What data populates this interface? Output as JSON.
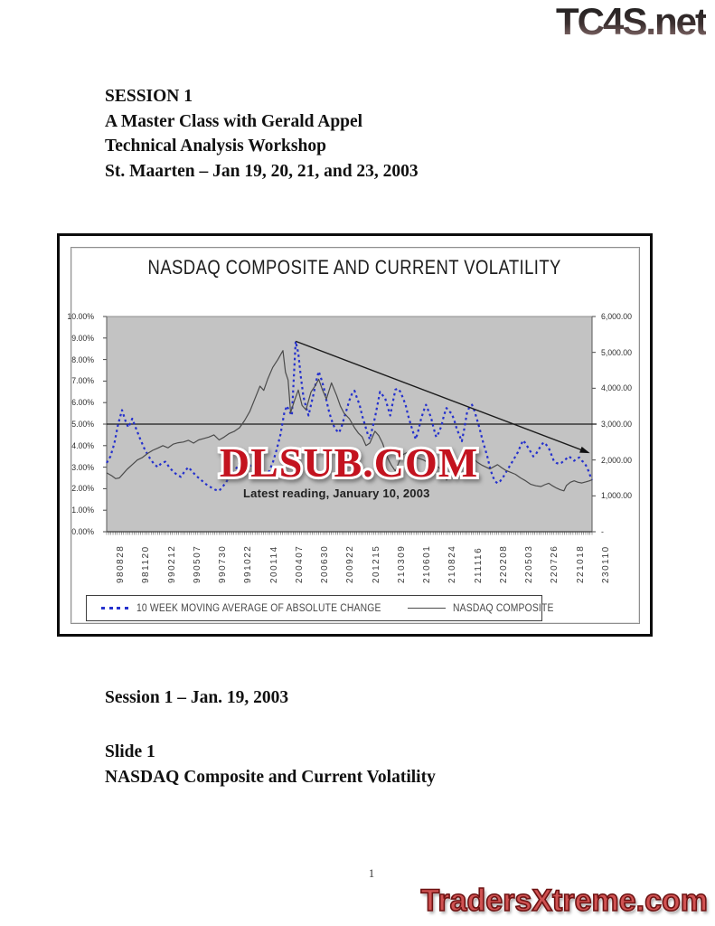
{
  "page": {
    "top_logo": "TC4S.net",
    "page_number": "1",
    "bottom_logo": "TradersXtreme.com"
  },
  "header": {
    "lines": [
      "SESSION 1",
      "A Master Class with Gerald Appel",
      "Technical Analysis Workshop",
      "St. Maarten – Jan 19, 20, 21, and 23, 2003"
    ]
  },
  "footer_block": {
    "session_line": "Session 1 – Jan. 19, 2003",
    "slide_label": "Slide 1",
    "slide_title": "NASDAQ Composite and Current Volatility"
  },
  "chart": {
    "watermark": "DLSUB.COM",
    "watermark_color": "#c3131f",
    "annotation": "Latest reading, January 10, 2003"
  },
  "chart_data": {
    "type": "line",
    "title": "NASDAQ COMPOSITE AND CURRENT VOLATILITY",
    "plot_bg": "#c3c3c3",
    "grid": "off",
    "legend_position": "bottom-box",
    "x_labels": [
      "980828",
      "981120",
      "990212",
      "990507",
      "990730",
      "991022",
      "200114",
      "200407",
      "200630",
      "200922",
      "201215",
      "210309",
      "210601",
      "210824",
      "211116",
      "220208",
      "220503",
      "220726",
      "221018",
      "230110"
    ],
    "left_axis": {
      "min": 0,
      "max": 10,
      "unit": "%",
      "tick_labels": [
        "10.00%",
        "9.00%",
        "8.00%",
        "7.00%",
        "6.00%",
        "5.00%",
        "4.00%",
        "3.00%",
        "2.00%",
        "1.00%",
        "0.00%"
      ]
    },
    "right_axis": {
      "min": 0,
      "max": 6000,
      "tick_labels": [
        "6,000.00",
        "5,000.00",
        "4,000.00",
        "3,000.00",
        "2,000.00",
        "1,000.00",
        "-"
      ]
    },
    "reference_line_left_pct": 5.0,
    "trendline": {
      "x1": 7.4,
      "y1_pct": 8.85,
      "x2": 18.85,
      "y2_pct": 3.68,
      "arrow": true,
      "color": "#1c1c1c"
    },
    "weekly_minor_ticks": 229,
    "series": [
      {
        "name": "10 WEEK MOVING AVERAGE OF ABSOLUTE CHANGE",
        "axis": "left",
        "style": "dotted",
        "color": "#2531cd",
        "points": [
          [
            0,
            3.2
          ],
          [
            0.15,
            3.5
          ],
          [
            0.3,
            4.1
          ],
          [
            0.45,
            5.0
          ],
          [
            0.6,
            5.65
          ],
          [
            0.75,
            5.1
          ],
          [
            0.85,
            4.85
          ],
          [
            1.0,
            5.25
          ],
          [
            1.15,
            4.8
          ],
          [
            1.3,
            4.35
          ],
          [
            1.5,
            3.8
          ],
          [
            1.7,
            3.4
          ],
          [
            1.85,
            3.15
          ],
          [
            2.0,
            3.0
          ],
          [
            2.15,
            3.2
          ],
          [
            2.3,
            3.25
          ],
          [
            2.45,
            3.0
          ],
          [
            2.6,
            2.8
          ],
          [
            2.75,
            2.65
          ],
          [
            2.9,
            2.55
          ],
          [
            3.05,
            2.8
          ],
          [
            3.2,
            3.0
          ],
          [
            3.35,
            2.8
          ],
          [
            3.5,
            2.6
          ],
          [
            3.65,
            2.45
          ],
          [
            3.8,
            2.3
          ],
          [
            3.95,
            2.15
          ],
          [
            4.1,
            2.05
          ],
          [
            4.25,
            1.95
          ],
          [
            4.4,
            1.9
          ],
          [
            4.55,
            2.1
          ],
          [
            4.7,
            2.35
          ],
          [
            4.85,
            2.6
          ],
          [
            5.0,
            2.8
          ],
          [
            5.15,
            3.1
          ],
          [
            5.3,
            3.4
          ],
          [
            5.45,
            3.25
          ],
          [
            5.6,
            3.1
          ],
          [
            5.75,
            2.9
          ],
          [
            5.9,
            2.7
          ],
          [
            6.05,
            2.6
          ],
          [
            6.2,
            2.5
          ],
          [
            6.35,
            2.8
          ],
          [
            6.5,
            3.2
          ],
          [
            6.65,
            3.8
          ],
          [
            6.8,
            4.5
          ],
          [
            6.95,
            5.5
          ],
          [
            7.05,
            5.85
          ],
          [
            7.15,
            5.6
          ],
          [
            7.25,
            5.4
          ],
          [
            7.4,
            8.85
          ],
          [
            7.5,
            8.3
          ],
          [
            7.6,
            7.2
          ],
          [
            7.7,
            6.3
          ],
          [
            7.8,
            5.8
          ],
          [
            7.9,
            5.4
          ],
          [
            8.0,
            5.9
          ],
          [
            8.1,
            6.4
          ],
          [
            8.2,
            7.0
          ],
          [
            8.3,
            7.45
          ],
          [
            8.4,
            7.1
          ],
          [
            8.5,
            6.7
          ],
          [
            8.6,
            6.1
          ],
          [
            8.7,
            5.6
          ],
          [
            8.8,
            5.2
          ],
          [
            8.9,
            4.9
          ],
          [
            9.0,
            4.7
          ],
          [
            9.1,
            4.6
          ],
          [
            9.2,
            4.9
          ],
          [
            9.3,
            5.3
          ],
          [
            9.4,
            5.7
          ],
          [
            9.5,
            6.1
          ],
          [
            9.6,
            6.4
          ],
          [
            9.7,
            6.55
          ],
          [
            9.8,
            6.2
          ],
          [
            9.9,
            5.9
          ],
          [
            10.0,
            5.4
          ],
          [
            10.1,
            5.0
          ],
          [
            10.2,
            4.6
          ],
          [
            10.3,
            4.3
          ],
          [
            10.4,
            4.8
          ],
          [
            10.5,
            5.3
          ],
          [
            10.6,
            5.9
          ],
          [
            10.7,
            6.5
          ],
          [
            10.8,
            6.35
          ],
          [
            10.9,
            6.2
          ],
          [
            11.0,
            5.8
          ],
          [
            11.1,
            5.4
          ],
          [
            11.2,
            6.0
          ],
          [
            11.3,
            6.6
          ],
          [
            11.4,
            6.65
          ],
          [
            11.5,
            6.5
          ],
          [
            11.6,
            6.2
          ],
          [
            11.7,
            5.9
          ],
          [
            11.8,
            5.4
          ],
          [
            11.9,
            5.0
          ],
          [
            12.0,
            4.6
          ],
          [
            12.1,
            4.3
          ],
          [
            12.2,
            4.7
          ],
          [
            12.3,
            5.2
          ],
          [
            12.4,
            5.6
          ],
          [
            12.5,
            5.9
          ],
          [
            12.6,
            5.6
          ],
          [
            12.7,
            5.3
          ],
          [
            12.8,
            4.8
          ],
          [
            12.9,
            4.4
          ],
          [
            13.0,
            4.6
          ],
          [
            13.1,
            4.9
          ],
          [
            13.2,
            5.4
          ],
          [
            13.3,
            5.75
          ],
          [
            13.4,
            5.6
          ],
          [
            13.5,
            5.5
          ],
          [
            13.6,
            5.2
          ],
          [
            13.7,
            4.8
          ],
          [
            13.8,
            4.5
          ],
          [
            13.9,
            4.2
          ],
          [
            14.0,
            4.8
          ],
          [
            14.1,
            5.5
          ],
          [
            14.2,
            5.8
          ],
          [
            14.3,
            5.9
          ],
          [
            14.4,
            5.6
          ],
          [
            14.5,
            5.2
          ],
          [
            14.6,
            4.8
          ],
          [
            14.7,
            4.3
          ],
          [
            14.8,
            3.9
          ],
          [
            14.9,
            3.5
          ],
          [
            15.0,
            3.0
          ],
          [
            15.1,
            2.6
          ],
          [
            15.2,
            2.35
          ],
          [
            15.3,
            2.25
          ],
          [
            15.4,
            2.35
          ],
          [
            15.5,
            2.5
          ],
          [
            15.6,
            2.7
          ],
          [
            15.7,
            2.9
          ],
          [
            15.8,
            3.1
          ],
          [
            15.9,
            3.3
          ],
          [
            16.0,
            3.5
          ],
          [
            16.1,
            3.7
          ],
          [
            16.2,
            4.0
          ],
          [
            16.3,
            4.25
          ],
          [
            16.4,
            4.1
          ],
          [
            16.5,
            3.9
          ],
          [
            16.6,
            3.7
          ],
          [
            16.7,
            3.5
          ],
          [
            16.8,
            3.6
          ],
          [
            16.9,
            3.8
          ],
          [
            17.0,
            4.0
          ],
          [
            17.1,
            4.15
          ],
          [
            17.2,
            4.05
          ],
          [
            17.3,
            3.9
          ],
          [
            17.4,
            3.6
          ],
          [
            17.5,
            3.3
          ],
          [
            17.6,
            3.2
          ],
          [
            17.7,
            3.15
          ],
          [
            17.8,
            3.2
          ],
          [
            17.9,
            3.3
          ],
          [
            18.0,
            3.4
          ],
          [
            18.1,
            3.5
          ],
          [
            18.2,
            3.4
          ],
          [
            18.3,
            3.3
          ],
          [
            18.4,
            3.4
          ],
          [
            18.5,
            3.45
          ],
          [
            18.6,
            3.3
          ],
          [
            18.7,
            3.2
          ],
          [
            18.8,
            3.0
          ],
          [
            18.9,
            2.7
          ],
          [
            18.95,
            2.5
          ],
          [
            19,
            2.4
          ]
        ]
      },
      {
        "name": "NASDAQ COMPOSITE",
        "axis": "right",
        "style": "solid",
        "color": "#4b4b4b",
        "points": [
          [
            0,
            1640
          ],
          [
            0.2,
            1560
          ],
          [
            0.35,
            1480
          ],
          [
            0.5,
            1500
          ],
          [
            0.65,
            1620
          ],
          [
            0.8,
            1740
          ],
          [
            1.0,
            1870
          ],
          [
            1.2,
            2000
          ],
          [
            1.4,
            2070
          ],
          [
            1.6,
            2180
          ],
          [
            1.8,
            2270
          ],
          [
            2.0,
            2330
          ],
          [
            2.2,
            2400
          ],
          [
            2.4,
            2340
          ],
          [
            2.6,
            2440
          ],
          [
            2.8,
            2480
          ],
          [
            3.0,
            2500
          ],
          [
            3.2,
            2550
          ],
          [
            3.4,
            2470
          ],
          [
            3.6,
            2560
          ],
          [
            3.8,
            2600
          ],
          [
            4.0,
            2640
          ],
          [
            4.2,
            2700
          ],
          [
            4.4,
            2560
          ],
          [
            4.6,
            2640
          ],
          [
            4.8,
            2740
          ],
          [
            5.0,
            2800
          ],
          [
            5.2,
            2900
          ],
          [
            5.4,
            3100
          ],
          [
            5.6,
            3350
          ],
          [
            5.8,
            3700
          ],
          [
            6.0,
            4060
          ],
          [
            6.15,
            3940
          ],
          [
            6.3,
            4250
          ],
          [
            6.5,
            4580
          ],
          [
            6.7,
            4800
          ],
          [
            6.9,
            5050
          ],
          [
            7.0,
            4450
          ],
          [
            7.1,
            4230
          ],
          [
            7.2,
            3320
          ],
          [
            7.35,
            3650
          ],
          [
            7.5,
            3950
          ],
          [
            7.65,
            3520
          ],
          [
            7.8,
            3400
          ],
          [
            8.0,
            3900
          ],
          [
            8.15,
            4050
          ],
          [
            8.3,
            4250
          ],
          [
            8.45,
            3950
          ],
          [
            8.6,
            3700
          ],
          [
            8.8,
            4150
          ],
          [
            9.0,
            3800
          ],
          [
            9.15,
            3500
          ],
          [
            9.3,
            3300
          ],
          [
            9.5,
            3150
          ],
          [
            9.7,
            2900
          ],
          [
            9.85,
            2750
          ],
          [
            10.0,
            2650
          ],
          [
            10.15,
            2400
          ],
          [
            10.3,
            2470
          ],
          [
            10.5,
            2800
          ],
          [
            10.65,
            2680
          ],
          [
            10.8,
            2470
          ],
          [
            11.0,
            2050
          ],
          [
            11.15,
            1850
          ],
          [
            11.3,
            1690
          ],
          [
            11.45,
            1960
          ],
          [
            11.6,
            2150
          ],
          [
            11.8,
            2220
          ],
          [
            12.0,
            2110
          ],
          [
            12.2,
            2050
          ],
          [
            12.4,
            2000
          ],
          [
            12.6,
            1920
          ],
          [
            12.8,
            1830
          ],
          [
            13.0,
            1800
          ],
          [
            13.15,
            1640
          ],
          [
            13.3,
            1440
          ],
          [
            13.45,
            1550
          ],
          [
            13.6,
            1700
          ],
          [
            13.8,
            1830
          ],
          [
            14.0,
            1900
          ],
          [
            14.2,
            1980
          ],
          [
            14.35,
            2050
          ],
          [
            14.5,
            1940
          ],
          [
            14.7,
            1850
          ],
          [
            14.85,
            1800
          ],
          [
            15.0,
            1750
          ],
          [
            15.15,
            1810
          ],
          [
            15.3,
            1870
          ],
          [
            15.45,
            1790
          ],
          [
            15.6,
            1720
          ],
          [
            15.8,
            1660
          ],
          [
            16.0,
            1600
          ],
          [
            16.2,
            1500
          ],
          [
            16.4,
            1420
          ],
          [
            16.6,
            1320
          ],
          [
            16.8,
            1280
          ],
          [
            17.0,
            1260
          ],
          [
            17.15,
            1310
          ],
          [
            17.3,
            1350
          ],
          [
            17.45,
            1280
          ],
          [
            17.6,
            1220
          ],
          [
            17.75,
            1170
          ],
          [
            17.9,
            1140
          ],
          [
            18.0,
            1290
          ],
          [
            18.15,
            1380
          ],
          [
            18.3,
            1420
          ],
          [
            18.45,
            1380
          ],
          [
            18.6,
            1360
          ],
          [
            18.75,
            1390
          ],
          [
            18.9,
            1420
          ],
          [
            19,
            1450
          ]
        ]
      }
    ]
  }
}
